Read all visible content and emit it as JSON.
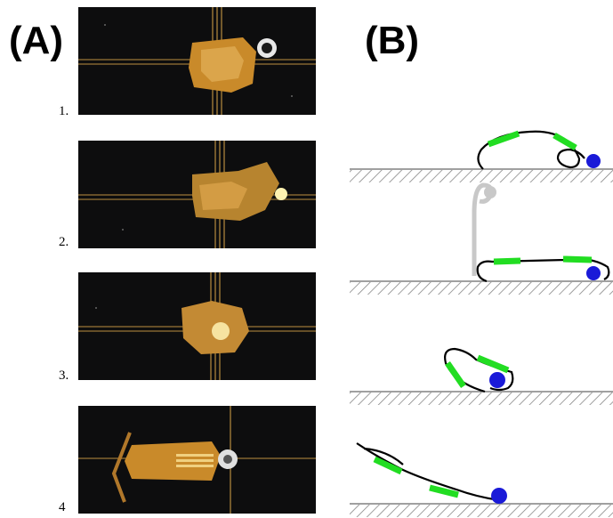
{
  "panel_labels": {
    "a": "(A)",
    "b": "(B)"
  },
  "photos": [
    {
      "step_label": "1."
    },
    {
      "step_label": "2."
    },
    {
      "step_label": "3."
    },
    {
      "step_label": "4"
    }
  ],
  "colors": {
    "photo_background": "#0d0d0e",
    "gold_structure": "#c98a2a",
    "schematic_segment": "#22dd22",
    "schematic_ball": "#1a1ad8",
    "ghost_pose": "#c8c8c8",
    "curve": "#000000",
    "ground_hatch": "#808080"
  }
}
